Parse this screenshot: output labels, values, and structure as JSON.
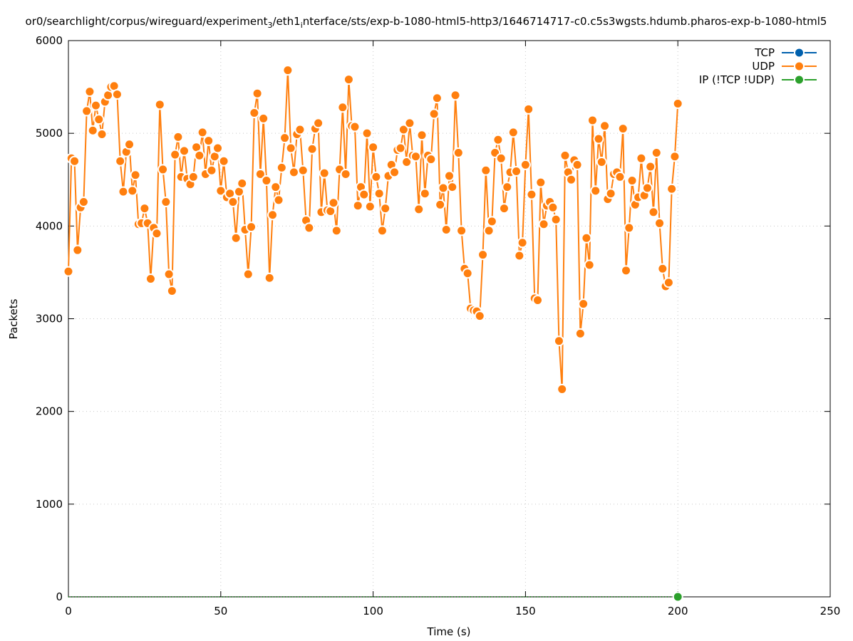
{
  "chart_data": {
    "type": "line",
    "title_parts": [
      {
        "text": "or0/searchlight/corpus/wireguard/experiment",
        "sub": false
      },
      {
        "text": "3",
        "sub": true
      },
      {
        "text": "/eth1",
        "sub": false
      },
      {
        "text": "i",
        "sub": true
      },
      {
        "text": "nterface/sts/exp-b-1080-html5-http3/1646714717-c0.c5s3wgsts.hdumb.pharos-exp-b-1080-html5",
        "sub": false
      }
    ],
    "xlabel": "Time (s)",
    "ylabel": "Packets",
    "xlim": [
      0,
      250
    ],
    "ylim": [
      0,
      6000
    ],
    "xticks": [
      "0",
      "50",
      "100",
      "150",
      "200",
      "250"
    ],
    "yticks": [
      "0",
      "1000",
      "2000",
      "3000",
      "4000",
      "5000",
      "6000"
    ],
    "grid": true,
    "legend_position": "top-right",
    "series": [
      {
        "name": "TCP",
        "color": "#0060ad",
        "x_start": 0,
        "x_step": 1,
        "values": []
      },
      {
        "name": "UDP",
        "color": "#ff7f0e",
        "x_start": 0,
        "x_step": 1,
        "values": [
          3510,
          4730,
          4700,
          3740,
          4200,
          4260,
          5240,
          5450,
          5030,
          5300,
          5150,
          4990,
          5340,
          5410,
          5500,
          5510,
          5420,
          4700,
          4370,
          4800,
          4880,
          4380,
          4550,
          4020,
          4030,
          4190,
          4030,
          3430,
          3980,
          3920,
          5310,
          4610,
          4260,
          3480,
          3300,
          4770,
          4960,
          4530,
          4810,
          4510,
          4450,
          4530,
          4850,
          4760,
          5010,
          4560,
          4920,
          4600,
          4750,
          4840,
          4380,
          4700,
          4310,
          4350,
          4260,
          3870,
          4370,
          4460,
          3960,
          3480,
          3990,
          5220,
          5430,
          4560,
          5160,
          4490,
          3440,
          4120,
          4420,
          4280,
          4630,
          4950,
          5680,
          4840,
          4580,
          4990,
          5040,
          4600,
          4060,
          3980,
          4830,
          5050,
          5110,
          4150,
          4570,
          4170,
          4160,
          4250,
          3950,
          4610,
          5280,
          4560,
          5580,
          5080,
          5070,
          4220,
          4420,
          4340,
          5000,
          4210,
          4850,
          4530,
          4350,
          3950,
          4190,
          4540,
          4660,
          4580,
          4820,
          4840,
          5040,
          4690,
          5110,
          4760,
          4750,
          4180,
          4980,
          4350,
          4760,
          4720,
          5210,
          5380,
          4230,
          4410,
          3960,
          4540,
          4420,
          5410,
          4790,
          3950,
          3540,
          3490,
          3110,
          3090,
          3080,
          3030,
          3690,
          4600,
          3950,
          4050,
          4790,
          4930,
          4730,
          4190,
          4420,
          4580,
          5010,
          4590,
          3680,
          3820,
          4660,
          5260,
          4340,
          3220,
          3200,
          4470,
          4020,
          4220,
          4260,
          4200,
          4070,
          2760,
          2240,
          4760,
          4580,
          4500,
          4710,
          4660,
          2840,
          3160,
          3870,
          3580,
          5140,
          4380,
          4940,
          4690,
          5080,
          4290,
          4350,
          4560,
          4580,
          4530,
          5050,
          3520,
          3980,
          4490,
          4230,
          4310,
          4730,
          4330,
          4410,
          4640,
          4150,
          4790,
          4030,
          3540,
          3350,
          3390,
          4400,
          4750,
          5320
        ]
      },
      {
        "name": "IP (!TCP  !UDP)",
        "color": "#2ca02c",
        "x_start": 0,
        "x_step": 1,
        "line_to": 200,
        "values": [
          0
        ],
        "point_at": 200
      }
    ]
  }
}
